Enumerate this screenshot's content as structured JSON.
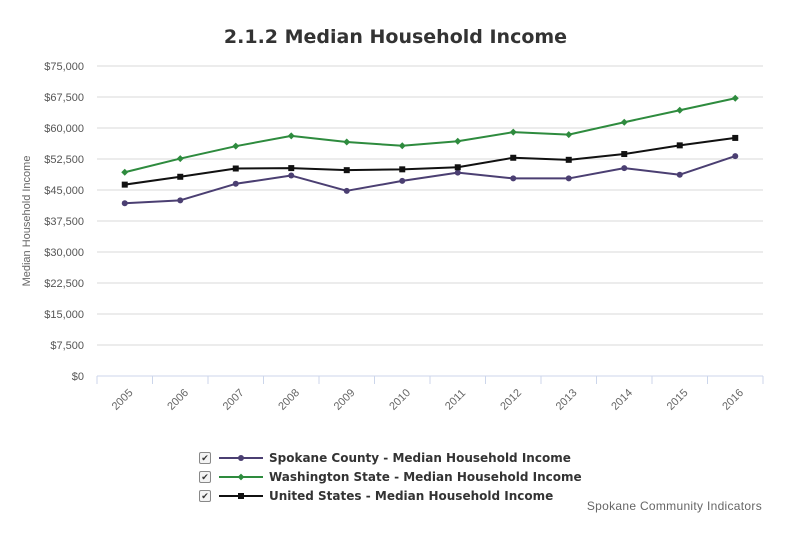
{
  "chart_data": {
    "type": "line",
    "title": "2.1.2 Median Household Income",
    "ylabel": "Median Household Income",
    "xlabel": "",
    "categories": [
      "2005",
      "2006",
      "2007",
      "2008",
      "2009",
      "2010",
      "2011",
      "2012",
      "2013",
      "2014",
      "2015",
      "2016"
    ],
    "y_ticks": [
      "$0",
      "$7,500",
      "$15,000",
      "$22,500",
      "$30,000",
      "$37,500",
      "$45,000",
      "$52,500",
      "$60,000",
      "$67,500",
      "$75,000"
    ],
    "ylim": [
      0,
      75000
    ],
    "grid": true,
    "series": [
      {
        "name": "Spokane County - Median Household Income",
        "color": "#4b3f72",
        "marker": "circle",
        "values": [
          41800,
          42500,
          46500,
          48500,
          44800,
          47200,
          49200,
          47800,
          47800,
          50300,
          48700,
          53200
        ]
      },
      {
        "name": "Washington State - Median Household Income",
        "color": "#2e8b3e",
        "marker": "diamond",
        "values": [
          49300,
          52600,
          55600,
          58100,
          56600,
          55700,
          56800,
          59000,
          58400,
          61400,
          64300,
          67200
        ]
      },
      {
        "name": "United States - Median Household Income",
        "color": "#111111",
        "marker": "square",
        "values": [
          46300,
          48200,
          50200,
          50300,
          49800,
          50000,
          50500,
          52800,
          52300,
          53700,
          55800,
          57600
        ]
      }
    ],
    "legend": "bottom",
    "credits": "Spokane Community Indicators"
  },
  "legend_check_glyph": "✔"
}
